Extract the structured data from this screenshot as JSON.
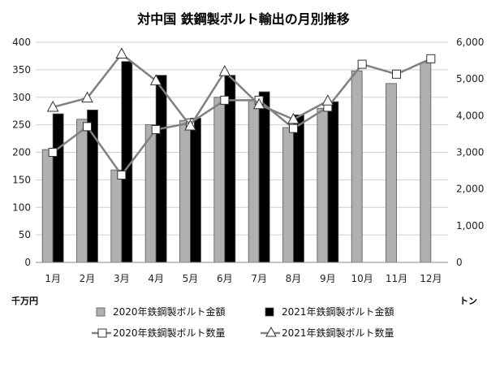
{
  "chart_data": {
    "type": "bar+line",
    "title": "対中国 鉄鋼製ボルト輸出の月別推移",
    "categories": [
      "1月",
      "2月",
      "3月",
      "4月",
      "5月",
      "6月",
      "7月",
      "8月",
      "9月",
      "10月",
      "11月",
      "12月"
    ],
    "left_axis": {
      "unit": "千万円",
      "range": [
        0,
        400
      ],
      "ticks": [
        0,
        50,
        100,
        150,
        200,
        250,
        300,
        350,
        400
      ]
    },
    "right_axis": {
      "unit": "トン",
      "range": [
        0,
        6000
      ],
      "ticks": [
        "0",
        "1,000",
        "2,000",
        "3,000",
        "4,000",
        "5,000",
        "6,000"
      ]
    },
    "series": [
      {
        "name": "2020年鉄鋼製ボルト金額",
        "kind": "bar",
        "axis": "left",
        "color": "#b0b0b0",
        "values": [
          205,
          260,
          168,
          250,
          258,
          300,
          295,
          245,
          280,
          348,
          325,
          363
        ]
      },
      {
        "name": "2021年鉄鋼製ボルト金額",
        "kind": "bar",
        "axis": "left",
        "color": "#000000",
        "values": [
          270,
          277,
          365,
          340,
          262,
          340,
          310,
          268,
          292,
          null,
          null,
          null
        ]
      },
      {
        "name": "2020年鉄鋼製ボルト数量",
        "kind": "line",
        "marker": "square",
        "axis": "right",
        "color": "#808080",
        "values": [
          3000,
          3700,
          2380,
          3620,
          3800,
          4420,
          4420,
          3650,
          4230,
          5400,
          5130,
          5550
        ]
      },
      {
        "name": "2021年鉄鋼製ボルト数量",
        "kind": "line",
        "marker": "triangle",
        "axis": "right",
        "color": "#808080",
        "values": [
          4230,
          4480,
          5680,
          4950,
          3720,
          5200,
          4300,
          3900,
          4400,
          null,
          null,
          null
        ]
      }
    ],
    "grid": true,
    "legend_position": "bottom"
  }
}
